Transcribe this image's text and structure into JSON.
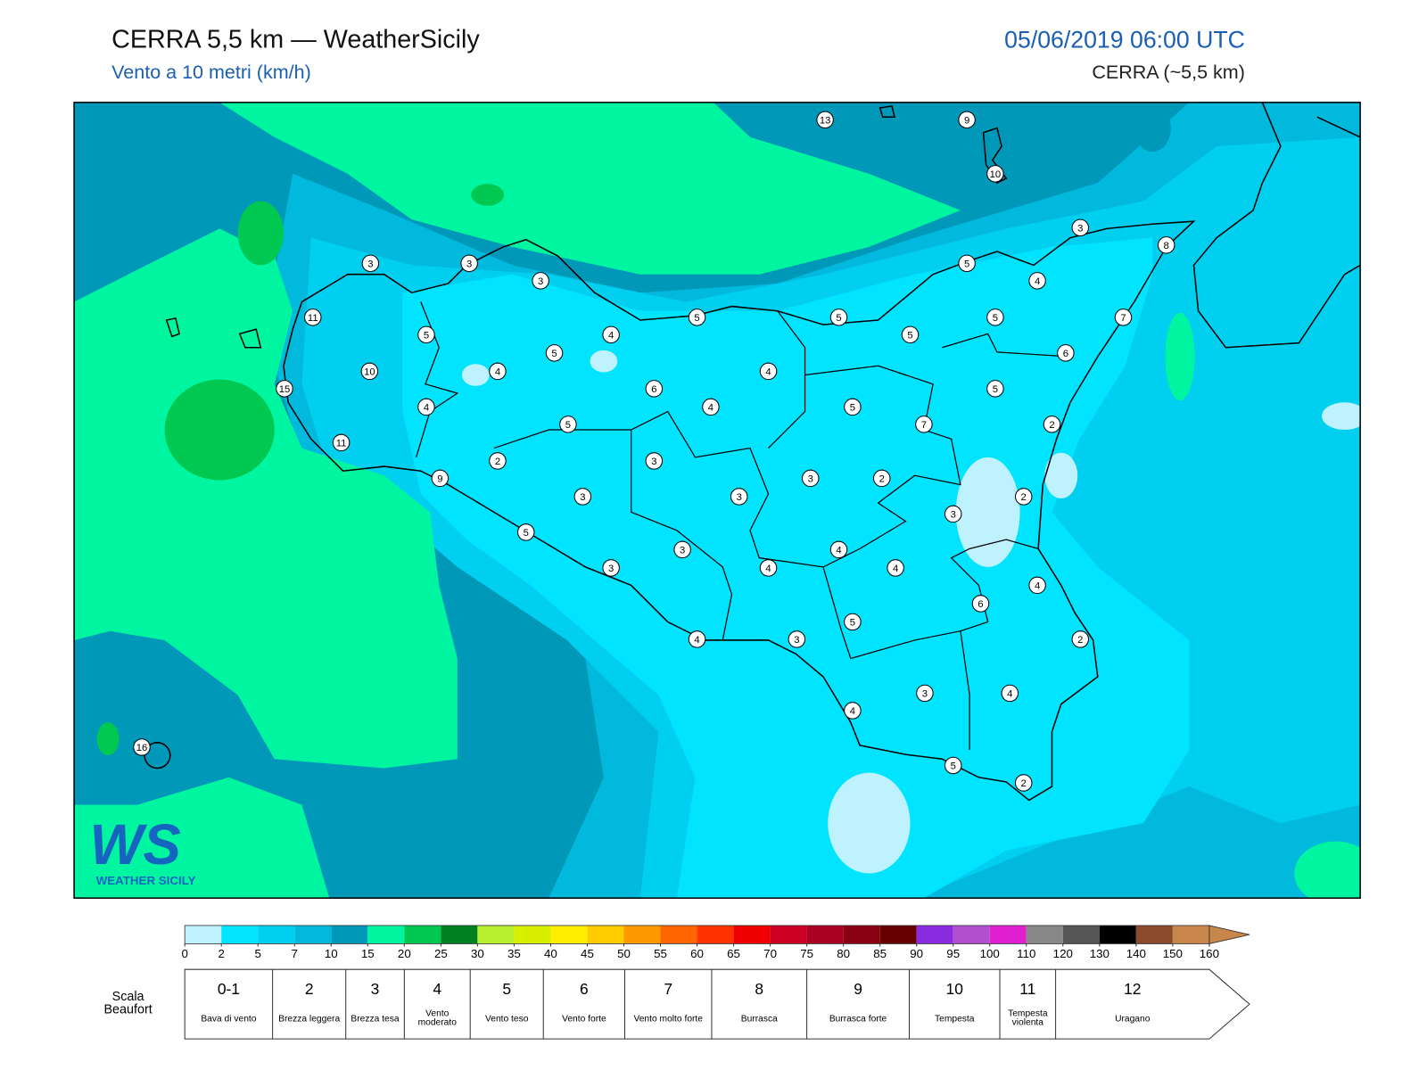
{
  "header": {
    "title": "CERRA 5,5 km — WeatherSicily",
    "subtitle": "Vento a 10 metri (km/h)",
    "date": "05/06/2019 06:00 UTC",
    "model": "CERRA (~5,5 km)"
  },
  "map": {
    "stations": [
      13,
      9,
      10,
      3,
      8,
      3,
      3,
      3,
      5,
      4,
      11,
      5,
      5,
      5,
      5,
      7,
      5,
      4,
      5,
      6,
      10,
      4,
      4,
      15,
      6,
      5,
      4,
      4,
      5,
      5,
      7,
      2,
      11,
      3,
      2,
      9,
      3,
      2,
      3,
      3,
      2,
      3,
      5,
      3,
      4,
      3,
      4,
      4,
      4,
      6,
      5,
      4,
      3,
      2,
      3,
      4,
      4,
      16,
      5,
      2
    ],
    "logo": {
      "mark": "WS",
      "name": "WEATHER SICILY"
    }
  },
  "colorbar": {
    "ticks": [
      0,
      2,
      5,
      7,
      10,
      15,
      20,
      25,
      30,
      35,
      40,
      45,
      50,
      55,
      60,
      65,
      70,
      75,
      80,
      85,
      90,
      95,
      100,
      110,
      120,
      130,
      140,
      150,
      160
    ],
    "colors": [
      "#bff2ff",
      "#00e4ff",
      "#00cff0",
      "#00b9dc",
      "#0098b8",
      "#00f5a0",
      "#00c850",
      "#008020",
      "#b8f030",
      "#d8f000",
      "#ffee00",
      "#ffcc00",
      "#ff9900",
      "#ff6600",
      "#ff3300",
      "#ee0000",
      "#cc0022",
      "#aa0022",
      "#880011",
      "#660000",
      "#8a2be2",
      "#b050d0",
      "#e020d0",
      "#888888",
      "#555555",
      "#000000",
      "#8b4a2b",
      "#c8864a"
    ]
  },
  "beaufort": {
    "label": "Scala Beaufort",
    "levels": [
      {
        "force": "0-1",
        "name": "Bava di vento"
      },
      {
        "force": "2",
        "name": "Brezza leggera"
      },
      {
        "force": "3",
        "name": "Brezza tesa"
      },
      {
        "force": "4",
        "name": "Vento moderato"
      },
      {
        "force": "5",
        "name": "Vento teso"
      },
      {
        "force": "6",
        "name": "Vento forte"
      },
      {
        "force": "7",
        "name": "Vento molto forte"
      },
      {
        "force": "8",
        "name": "Burrasca"
      },
      {
        "force": "9",
        "name": "Burrasca forte"
      },
      {
        "force": "10",
        "name": "Tempesta"
      },
      {
        "force": "11",
        "name": "Tempesta violenta"
      },
      {
        "force": "12",
        "name": "Uragano"
      }
    ]
  }
}
